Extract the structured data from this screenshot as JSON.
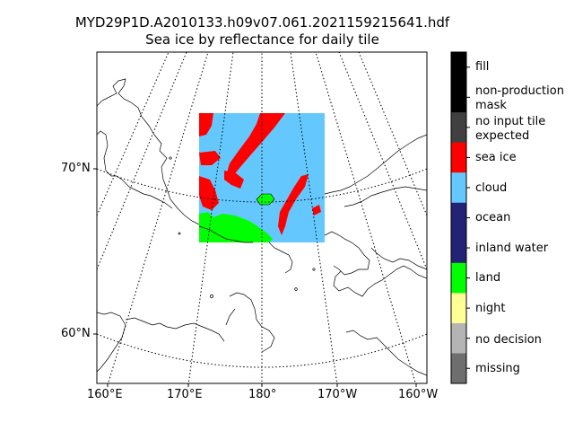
{
  "title": {
    "line1": "MYD29P1D.A2010133.h09v07.061.2021159215641.hdf",
    "line2": "Sea ice by reflectance for daily tile"
  },
  "axes": {
    "lat_ticks": [
      "70°N",
      "60°N"
    ],
    "lon_ticks": [
      "160°E",
      "170°E",
      "180°",
      "170°W",
      "160°W"
    ]
  },
  "colorbar": {
    "classes": [
      {
        "label": "fill",
        "color": "#000000"
      },
      {
        "label": "non-production mask",
        "color": "#000000"
      },
      {
        "label": "no input tile expected",
        "color": "#404040"
      },
      {
        "label": "sea ice",
        "color": "#ff0000"
      },
      {
        "label": "cloud",
        "color": "#64c8ff"
      },
      {
        "label": "ocean",
        "color": "#232375"
      },
      {
        "label": "inland water",
        "color": "#232375"
      },
      {
        "label": "land",
        "color": "#00ff00"
      },
      {
        "label": "night",
        "color": "#ffff96"
      },
      {
        "label": "no decision",
        "color": "#b4b4b4"
      },
      {
        "label": "missing",
        "color": "#6e6e6e"
      }
    ]
  }
}
